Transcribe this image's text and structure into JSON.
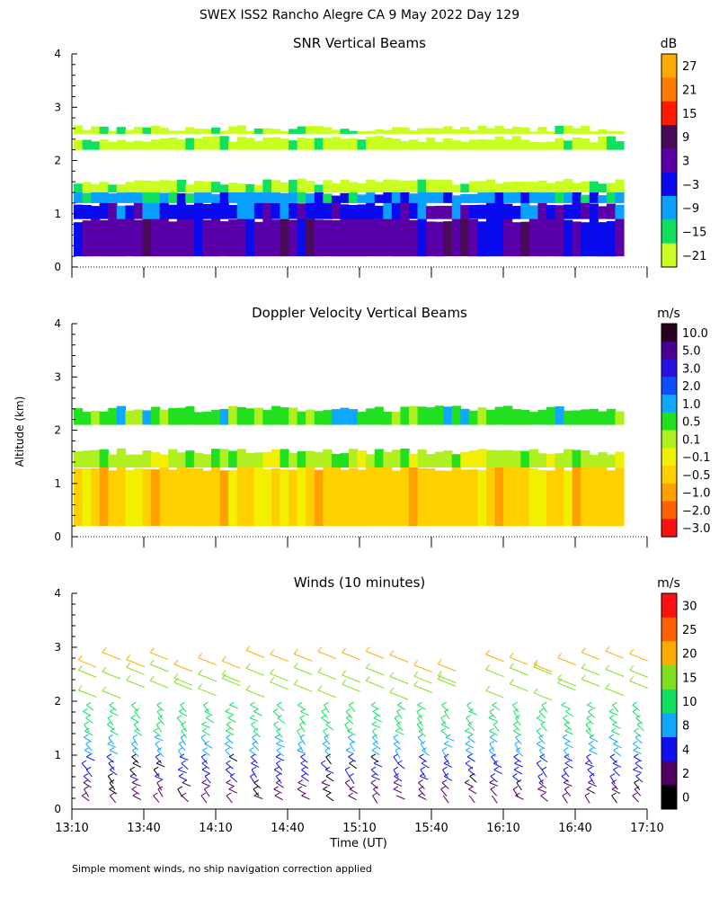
{
  "figure": {
    "title": "SWEX ISS2 Rancho Alegre CA   9 May 2022 Day 129",
    "ylabel": "Altitude (km)",
    "xlabel": "Time (UT)",
    "footnote": "Simple moment winds, no ship navigation correction applied"
  },
  "chart_data": [
    {
      "type": "heatmap",
      "title": "SNR Vertical Beams",
      "units": "dB",
      "x_ticks": [
        "13:10",
        "13:40",
        "14:10",
        "14:40",
        "15:10",
        "15:40",
        "16:10",
        "16:40",
        "17:10"
      ],
      "xlim": [
        "13:10",
        "17:10"
      ],
      "ylim": [
        0,
        4
      ],
      "y_ticks": [
        "0",
        "1",
        "2",
        "3",
        "4"
      ],
      "colorbar": {
        "labels": [
          "27",
          "21",
          "15",
          "9",
          "3",
          "−3",
          "−9",
          "−15",
          "−21"
        ],
        "colors": [
          "#ffaa00",
          "#ff7a00",
          "#ff1a00",
          "#4a0a5a",
          "#5a00a8",
          "#0a0aee",
          "#0aa0ff",
          "#10e060",
          "#c8ff20"
        ]
      },
      "layers": [
        {
          "from_km": 0.2,
          "to_km": 0.9,
          "level_db": 3
        },
        {
          "from_km": 0.9,
          "to_km": 1.2,
          "level_db": -3
        },
        {
          "from_km": 1.2,
          "to_km": 1.4,
          "level_db": -9
        },
        {
          "from_km": 1.4,
          "to_km": 1.6,
          "level_db": -21
        },
        {
          "from_km": 2.2,
          "to_km": 2.4,
          "level_db": -21
        },
        {
          "from_km": 2.5,
          "to_km": 2.6,
          "level_db": -21
        }
      ]
    },
    {
      "type": "heatmap",
      "title": "Doppler Velocity Vertical Beams",
      "units": "m/s",
      "x_ticks": [
        "13:10",
        "13:40",
        "14:10",
        "14:40",
        "15:10",
        "15:40",
        "16:10",
        "16:40",
        "17:10"
      ],
      "xlim": [
        "13:10",
        "17:10"
      ],
      "ylim": [
        0,
        4
      ],
      "y_ticks": [
        "0",
        "1",
        "2",
        "3",
        "4"
      ],
      "colorbar": {
        "labels": [
          "10.0",
          "5.0",
          "3.0",
          "2.0",
          "1.0",
          "0.5",
          "0.1",
          "−0.1",
          "−0.5",
          "−1.0",
          "−2.0",
          "−3.0"
        ],
        "colors": [
          "#2a0020",
          "#4a0090",
          "#2a10e0",
          "#0a50ff",
          "#10a8ff",
          "#20e020",
          "#b0f020",
          "#f0f000",
          "#ffd000",
          "#ffa000",
          "#ff6000",
          "#ff1010"
        ]
      },
      "layers": [
        {
          "from_km": 0.2,
          "to_km": 1.3,
          "level_ms": -0.5
        },
        {
          "from_km": 1.3,
          "to_km": 1.6,
          "level_ms": 0.1
        },
        {
          "from_km": 2.1,
          "to_km": 2.4,
          "level_ms": 0.5
        }
      ]
    },
    {
      "type": "scatter",
      "title": "Winds (10 minutes)",
      "units": "m/s",
      "x_ticks": [
        "13:10",
        "13:40",
        "14:10",
        "14:40",
        "15:10",
        "15:40",
        "16:10",
        "16:40",
        "17:10"
      ],
      "xlim": [
        "13:10",
        "17:10"
      ],
      "ylim": [
        0,
        4
      ],
      "y_ticks": [
        "0",
        "1",
        "2",
        "3",
        "4"
      ],
      "colorbar": {
        "labels": [
          "30",
          "25",
          "20",
          "15",
          "10",
          "8",
          "4",
          "2",
          "0"
        ],
        "colors": [
          "#ff1010",
          "#ff6000",
          "#ffaa00",
          "#80e020",
          "#10e060",
          "#10a8ff",
          "#1010ee",
          "#500060",
          "#000000"
        ]
      },
      "series": [
        {
          "name": "",
          "x": [
            "13:15",
            "13:25",
            "13:35",
            "13:45",
            "13:55",
            "14:05",
            "14:15",
            "14:25",
            "14:35",
            "14:45",
            "14:55",
            "15:05",
            "15:15",
            "15:25",
            "15:35",
            "15:45",
            "15:55",
            "16:05",
            "16:15",
            "16:25",
            "16:35",
            "16:45",
            "16:55",
            "17:05"
          ],
          "speed_ms_at_1km": [
            5,
            5,
            4,
            5,
            4,
            3,
            3,
            2,
            2,
            2,
            1,
            1,
            1,
            1,
            1,
            1,
            1,
            1,
            3,
            5,
            4,
            3,
            5,
            6
          ]
        }
      ]
    }
  ]
}
